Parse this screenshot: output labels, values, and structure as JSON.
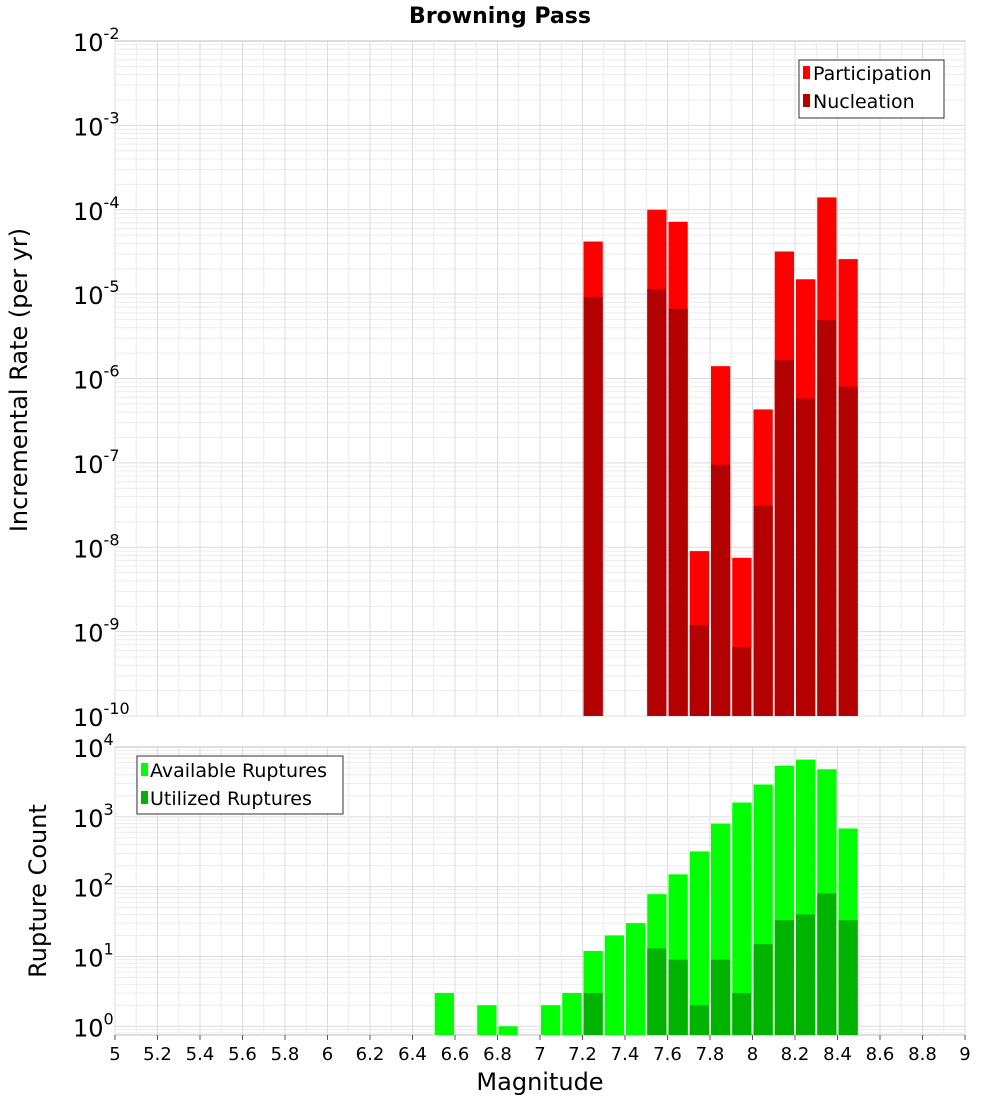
{
  "chart_data": [
    {
      "type": "bar",
      "title": "Browning Pass",
      "ylabel": "Incremental Rate (per yr)",
      "xlabel": "",
      "yscale": "log",
      "ylim": [
        1e-10,
        0.01
      ],
      "xlim": [
        5,
        9
      ],
      "grid": true,
      "legend_position": "top-right",
      "x": [
        7.25,
        7.55,
        7.65,
        7.75,
        7.85,
        7.95,
        8.05,
        8.15,
        8.25,
        8.35,
        8.45
      ],
      "y_tick_exponents": [
        -10,
        -9,
        -8,
        -7,
        -6,
        -5,
        -4,
        -3,
        -2
      ],
      "series": [
        {
          "name": "Participation",
          "color": "#ff0000",
          "values": [
            4.2e-05,
            0.0001,
            7.2e-05,
            9e-09,
            1.4e-06,
            7.5e-09,
            4.3e-07,
            3.2e-05,
            1.5e-05,
            0.00014,
            2.6e-05
          ]
        },
        {
          "name": "Nucleation",
          "color": "#b30000",
          "values": [
            9.2e-06,
            1.15e-05,
            6.7e-06,
            1.2e-09,
            9.5e-08,
            6.5e-10,
            3.1e-08,
            1.65e-06,
            5.8e-07,
            4.9e-06,
            8e-07
          ]
        }
      ]
    },
    {
      "type": "bar",
      "title": "",
      "ylabel": "Rupture Count",
      "xlabel": "Magnitude",
      "yscale": "log",
      "ylim": [
        0.75,
        10000
      ],
      "xlim": [
        5,
        9
      ],
      "grid": true,
      "legend_position": "top-left",
      "x": [
        6.55,
        6.75,
        6.85,
        7.05,
        7.15,
        7.25,
        7.35,
        7.45,
        7.55,
        7.65,
        7.75,
        7.85,
        7.95,
        8.05,
        8.15,
        8.25,
        8.35,
        8.45
      ],
      "y_tick_exponents": [
        0,
        1,
        2,
        3,
        4
      ],
      "x_ticks": [
        "5",
        "5.2",
        "5.4",
        "5.6",
        "5.8",
        "6",
        "6.2",
        "6.4",
        "6.6",
        "6.8",
        "7",
        "7.2",
        "7.4",
        "7.6",
        "7.8",
        "8",
        "8.2",
        "8.4",
        "8.6",
        "8.8",
        "9"
      ],
      "series": [
        {
          "name": "Available Ruptures",
          "color": "#00ff00",
          "values": [
            3,
            2,
            1,
            2,
            3,
            12,
            20,
            30,
            78,
            150,
            320,
            800,
            1600,
            2900,
            5400,
            6600,
            4800,
            680
          ]
        },
        {
          "name": "Utilized Ruptures",
          "color": "#00b300",
          "values": [
            0,
            0,
            0,
            0,
            0,
            3,
            0,
            0,
            13,
            9,
            2,
            9,
            3,
            15,
            33,
            40,
            80,
            33
          ]
        }
      ]
    }
  ]
}
